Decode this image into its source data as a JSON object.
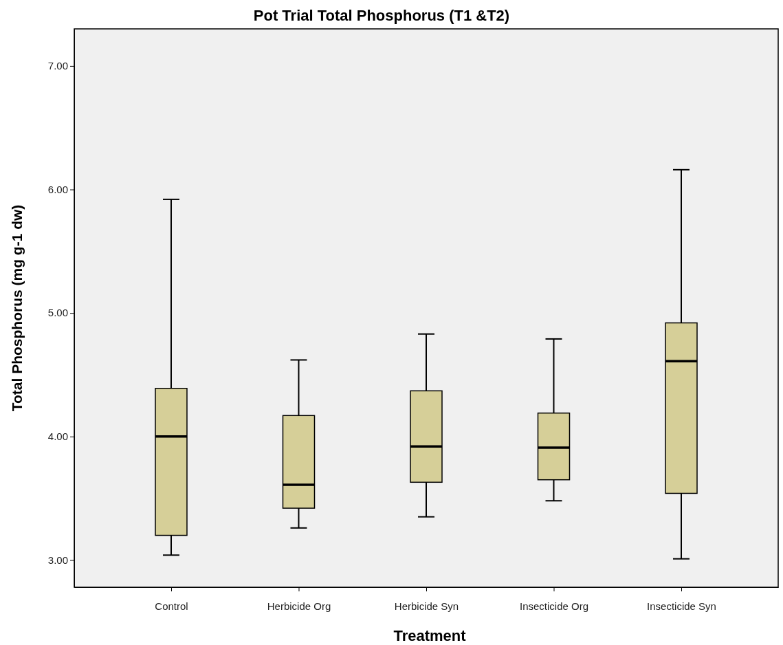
{
  "chart_data": {
    "type": "box",
    "title": "Pot Trial Total Phosphorus (T1 &T2)",
    "xlabel": "Treatment",
    "ylabel": "Total Phosphorus  (mg g-1 dw)",
    "categories": [
      "Control",
      "Herbicide Org",
      "Herbicide Syn",
      "Insecticide Org",
      "Insecticide Syn"
    ],
    "color": "#d6cf98",
    "boxes": [
      {
        "low": 3.04,
        "q1": 3.2,
        "median": 4.0,
        "q3": 4.39,
        "high": 5.92
      },
      {
        "low": 3.26,
        "q1": 3.42,
        "median": 3.61,
        "q3": 4.17,
        "high": 4.62
      },
      {
        "low": 3.35,
        "q1": 3.63,
        "median": 3.92,
        "q3": 4.37,
        "high": 4.83
      },
      {
        "low": 3.48,
        "q1": 3.65,
        "median": 3.91,
        "q3": 4.19,
        "high": 4.79
      },
      {
        "low": 3.01,
        "q1": 3.54,
        "median": 4.61,
        "q3": 4.92,
        "high": 6.16
      }
    ],
    "ylim": [
      2.78,
      7.3
    ],
    "yticks": [
      {
        "value": 3,
        "label": "3.00"
      },
      {
        "value": 4,
        "label": "4.00"
      },
      {
        "value": 5,
        "label": "5.00"
      },
      {
        "value": 6,
        "label": "6.00"
      },
      {
        "value": 7,
        "label": "7.00"
      }
    ],
    "grid": false
  }
}
